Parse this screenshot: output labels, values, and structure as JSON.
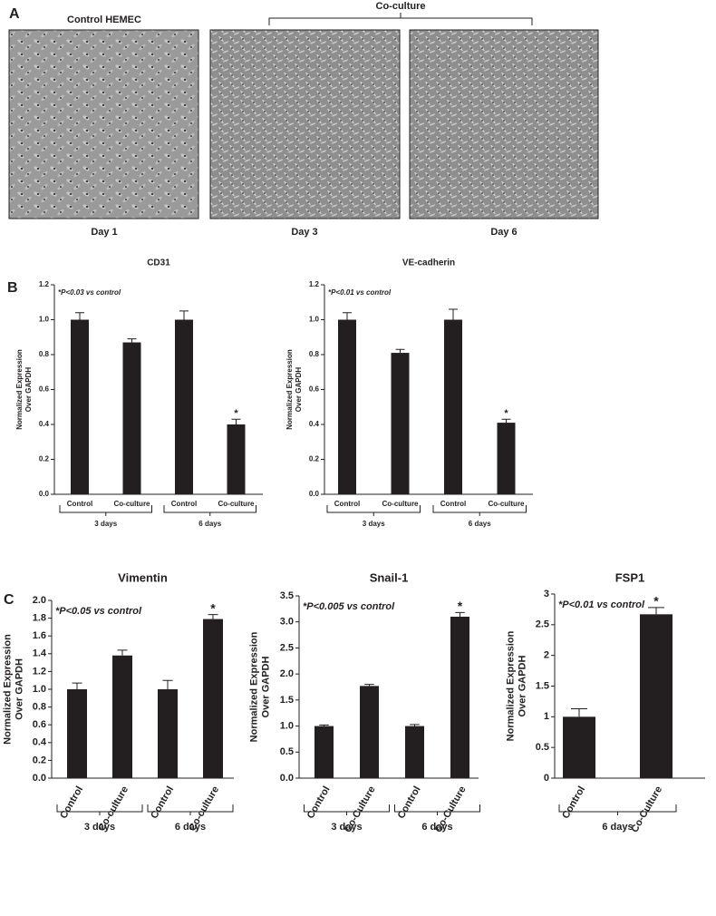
{
  "figure": {
    "panel_labels": [
      "A",
      "B",
      "C"
    ],
    "control_label": "Control HEMEC",
    "coculture_label": "Co-culture",
    "days": [
      "Day 1",
      "Day 3",
      "Day 6"
    ]
  },
  "chart_data": [
    {
      "type": "bar",
      "title": "CD31",
      "ylabel": [
        "Normalized Expression",
        "Over GAPDH"
      ],
      "annotation": "*P<0.03 vs control",
      "categories": [
        "Control",
        "Co-culture",
        "Control",
        "Co-culture"
      ],
      "groups": [
        "3 days",
        "6 days"
      ],
      "values": [
        1.0,
        0.87,
        1.0,
        0.4
      ],
      "errors": [
        0.04,
        0.02,
        0.05,
        0.03
      ],
      "sig_labels": [
        null,
        null,
        null,
        "*"
      ],
      "color": "#231f20",
      "ylim": [
        0,
        1.2
      ],
      "yticks": [
        {
          "value": 0,
          "label": "0.0"
        },
        0.2,
        0.4,
        0.6,
        0.8,
        {
          "value": 1,
          "label": "1.0"
        },
        1.2
      ]
    },
    {
      "type": "bar",
      "title": "VE-cadherin",
      "ylabel": [
        "Normalized Expression",
        "Over GAPDH"
      ],
      "annotation": "*P<0.01 vs control",
      "categories": [
        "Control",
        "Co-culture",
        "Control",
        "Co-culture"
      ],
      "groups": [
        "3 days",
        "6 days"
      ],
      "values": [
        1.0,
        0.81,
        1.0,
        0.41
      ],
      "errors": [
        0.04,
        0.02,
        0.06,
        0.02
      ],
      "sig_labels": [
        null,
        null,
        null,
        "*"
      ],
      "color": "#231f20",
      "ylim": [
        0,
        1.2
      ],
      "yticks": [
        {
          "value": 0,
          "label": "0.0"
        },
        0.2,
        0.4,
        0.6,
        0.8,
        {
          "value": 1,
          "label": "1.0"
        },
        1.2
      ]
    },
    {
      "type": "bar",
      "title": "Vimentin",
      "ylabel": [
        "Normalized Expression",
        "Over GAPDH"
      ],
      "annotation": "*P<0.05 vs control",
      "categories": [
        "Control",
        "Co-culture",
        "Control",
        "Co-culture"
      ],
      "groups": [
        "3 days",
        "6 days"
      ],
      "values": [
        1.0,
        1.38,
        1.0,
        1.79
      ],
      "errors": [
        0.07,
        0.06,
        0.1,
        0.05
      ],
      "sig_labels": [
        null,
        null,
        null,
        "*"
      ],
      "color": "#231f20",
      "ylim": [
        0,
        2
      ],
      "yticks": [
        {
          "value": 0,
          "label": "0.0"
        },
        0.2,
        0.4,
        0.6,
        0.8,
        {
          "value": 1,
          "label": "1.0"
        },
        1.2,
        1.4,
        1.6,
        1.8,
        {
          "value": 2,
          "label": "2.0"
        }
      ]
    },
    {
      "type": "bar",
      "title": "Snail-1",
      "ylabel": [
        "Normalized Expression",
        "Over GAPDH"
      ],
      "annotation": "*P<0.005 vs control",
      "categories": [
        "Control",
        "Co-Culture",
        "Control",
        "Co-Culture"
      ],
      "groups": [
        "3 days",
        "6 days"
      ],
      "values": [
        1.0,
        1.77,
        1.0,
        3.1
      ],
      "errors": [
        0.02,
        0.03,
        0.03,
        0.08
      ],
      "sig_labels": [
        null,
        null,
        null,
        "*"
      ],
      "color": "#231f20",
      "ylim": [
        0,
        3.5
      ],
      "yticks": [
        {
          "value": 0,
          "label": "0.0"
        },
        0.5,
        {
          "value": 1,
          "label": "1.0"
        },
        1.5,
        {
          "value": 2,
          "label": "2.0"
        },
        2.5,
        {
          "value": 3,
          "label": "3.0"
        },
        3.5
      ]
    },
    {
      "type": "bar",
      "title": "FSP1",
      "ylabel": [
        "Normalized Expression",
        "Over GAPDH"
      ],
      "annotation": "*P<0.01 vs control",
      "categories": [
        "Control",
        "Co-Culture"
      ],
      "groups": [
        "6 days"
      ],
      "values": [
        1.0,
        2.67
      ],
      "errors": [
        0.13,
        0.11
      ],
      "sig_labels": [
        null,
        "*"
      ],
      "color": "#231f20",
      "ylim": [
        0,
        3
      ],
      "yticks": [
        0,
        0.5,
        1,
        1.5,
        2,
        2.5,
        3
      ]
    }
  ]
}
